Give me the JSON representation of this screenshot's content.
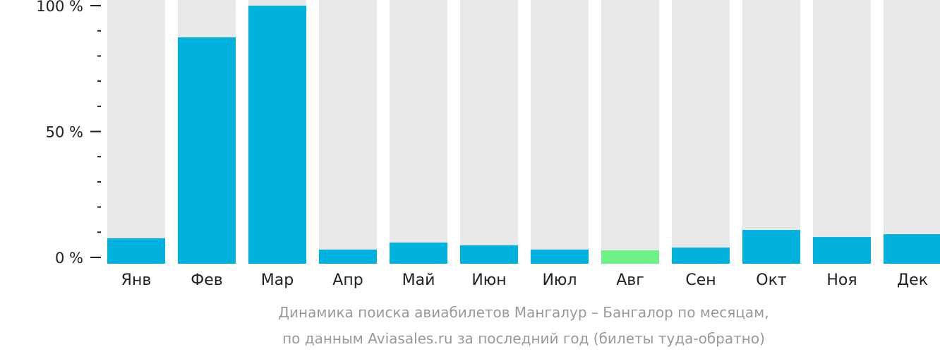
{
  "chart_data": {
    "type": "bar",
    "title": "Динамика поиска авиабилетов Мангалур – Бангалор по месяцам,",
    "subtitle": "по данным Aviasales.ru за последний год (билеты туда-обратно)",
    "xlabel": "",
    "ylabel": "",
    "ylim": [
      0,
      100
    ],
    "yticks": [
      {
        "value": 0,
        "label": "0 %"
      },
      {
        "value": 50,
        "label": "50 %"
      },
      {
        "value": 100,
        "label": "100 %"
      }
    ],
    "categories": [
      "Янв",
      "Фев",
      "Мар",
      "Апр",
      "Май",
      "Июн",
      "Июл",
      "Авг",
      "Сен",
      "Окт",
      "Ноя",
      "Дек"
    ],
    "values": [
      7.6,
      87.4,
      100,
      3.1,
      5.9,
      4.8,
      3.1,
      2.8,
      3.9,
      10.9,
      8.1,
      9.2
    ],
    "highlight_index": 7,
    "colors": {
      "bar": "#00b0dd",
      "highlight": "#6ef287",
      "background_bar": "#e8e8e8",
      "axis": "#222222"
    }
  }
}
